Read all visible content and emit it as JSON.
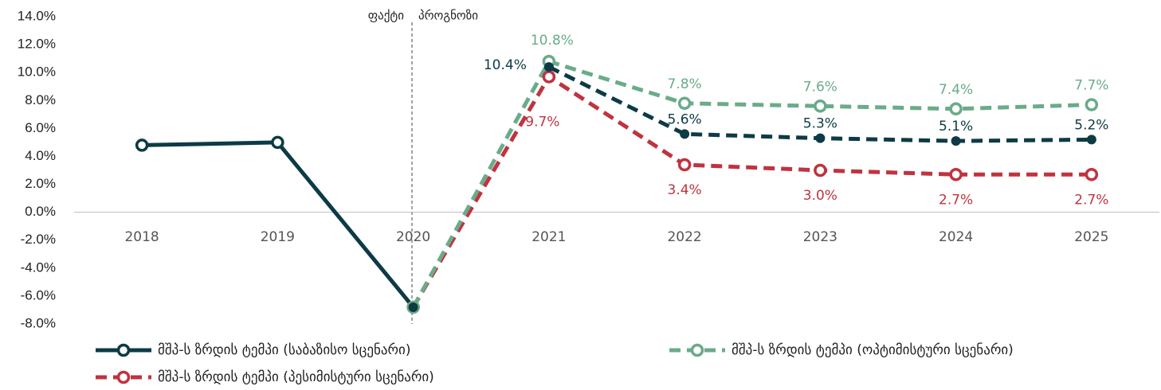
{
  "chart_data": {
    "type": "line",
    "categories": [
      "2018",
      "2019",
      "2020",
      "2021",
      "2022",
      "2023",
      "2024",
      "2025"
    ],
    "ylim": [
      -8,
      14
    ],
    "yticks": [
      {
        "value": -8,
        "label": "-8.0%"
      },
      {
        "value": -6,
        "label": "-6.0%"
      },
      {
        "value": -4,
        "label": "-4.0%"
      },
      {
        "value": -2,
        "label": "-2.0%"
      },
      {
        "value": 0,
        "label": "0.0%"
      },
      {
        "value": 2,
        "label": "2.0%"
      },
      {
        "value": 4,
        "label": "4.0%"
      },
      {
        "value": 6,
        "label": "6.0%"
      },
      {
        "value": 8,
        "label": "8.0%"
      },
      {
        "value": 10,
        "label": "10.0%"
      },
      {
        "value": 12,
        "label": "12.0%"
      },
      {
        "value": 14,
        "label": "14.0%"
      }
    ],
    "annotations": [
      "ფაქტი",
      "პროგნოზი"
    ],
    "series": [
      {
        "name": "მშპ-ს ზრდის ტემპი (საბაზისო სცენარი)",
        "color": "#0d3b45",
        "values": [
          4.8,
          5.0,
          -6.8,
          10.4,
          5.6,
          5.3,
          5.1,
          5.2
        ],
        "value_labels": [
          null,
          null,
          null,
          "10.4%",
          "5.6%",
          "5.3%",
          "5.1%",
          "5.2%"
        ]
      },
      {
        "name": "მშპ-ს ზრდის ტემპი (ოპტიმისტური სცენარი)",
        "color": "#6aab8a",
        "values": [
          null,
          null,
          -6.8,
          10.8,
          7.8,
          7.6,
          7.4,
          7.7
        ],
        "value_labels": [
          null,
          null,
          null,
          "10.8%",
          "7.8%",
          "7.6%",
          "7.4%",
          "7.7%"
        ]
      },
      {
        "name": "მშპ-ს ზრდის ტემპი (პესიმისტური სცენარი)",
        "color": "#c0333f",
        "values": [
          null,
          null,
          -6.8,
          9.7,
          3.4,
          3.0,
          2.7,
          2.7
        ],
        "value_labels": [
          null,
          null,
          null,
          "9.7%",
          "3.4%",
          "3.0%",
          "2.7%",
          "2.7%"
        ]
      }
    ]
  }
}
